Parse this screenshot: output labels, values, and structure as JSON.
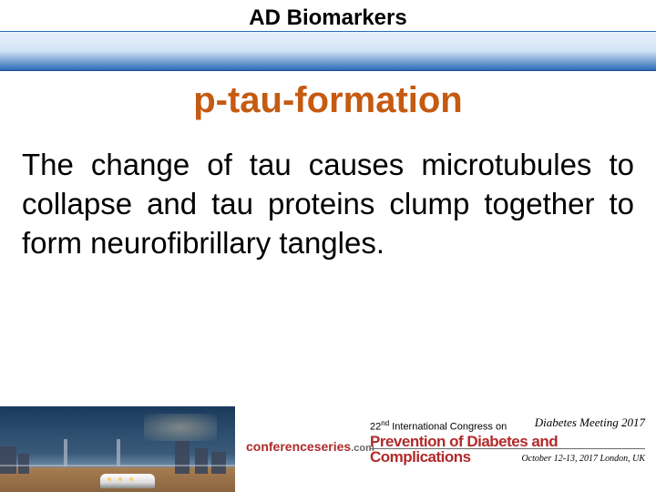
{
  "header": {
    "title": "AD Biomarkers",
    "band_gradient_top": "#e8f1fb",
    "band_gradient_mid": "#d1e3f6",
    "band_gradient_bottom": "#2b6cb5"
  },
  "subtitle": {
    "text": "p-tau-formation",
    "color": "#c55a11",
    "fontsize": 40
  },
  "body": {
    "text": "The change of tau causes microtubules to collapse  and tau proteins clump together  to form neurofibrillary tangles.",
    "color": "#000000",
    "fontsize": 33
  },
  "footer": {
    "photo": {
      "description": "london-skyline-tower-bridge-night",
      "sky_colors": [
        "#1a3a5c",
        "#2c4d6e",
        "#3a5a7a",
        "#6b8aa5"
      ],
      "ground_colors": [
        "#a67c52",
        "#8a6540"
      ]
    },
    "logo": {
      "name": "conferenceseries",
      "domain": ".com",
      "color": "#b02a2a"
    },
    "congress": {
      "ordinal": "22",
      "ordinal_suffix": "nd",
      "line_rest": " International Congress on",
      "title": "Prevention of Diabetes and Complications",
      "title_color": "#b02a2a"
    },
    "meeting": {
      "label": "Diabetes Meeting 2017",
      "date": "October 12-13, 2017 London, UK"
    }
  }
}
